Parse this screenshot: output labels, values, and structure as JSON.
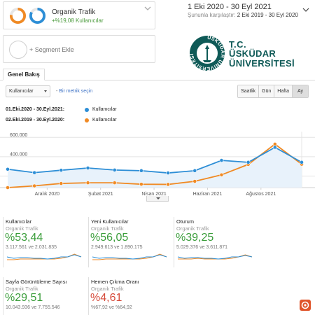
{
  "segments": {
    "primary": {
      "title": "Organik Trafik",
      "subtitle": "+%19,08 Kullanıcılar",
      "ring_colors": [
        "#f08a24",
        "#2d8ed6"
      ]
    },
    "add_label": "+ Segment Ekle"
  },
  "date_range": {
    "main": "1 Eki 2020 - 30 Eyl 2021",
    "compare_label": "Şununla karşılaştır:",
    "compare_range": "2 Eki 2019 - 30 Eyl 2020"
  },
  "logo": {
    "ring_text": "ÜSKÜDAR ÜNİVERSİTESİ",
    "line1": "T.C.",
    "line2": "ÜSKÜDAR",
    "line3": "ÜNİVERSİTESİ",
    "color": "#0f5a57"
  },
  "tabs": {
    "overview": "Genel Bakış"
  },
  "controls": {
    "metric_select": "Kullanıcılar",
    "vs": "-",
    "add_metric": "Bir metrik seçin",
    "periods": [
      "Saatlik",
      "Gün",
      "Hafta",
      "Ay"
    ],
    "active_period": "Ay"
  },
  "legend": [
    {
      "range": "01.Eki.2020 - 30.Eyl.2021:",
      "name": "Kullanıcılar",
      "color": "#2d8ed6"
    },
    {
      "range": "02.Eki.2019 - 30.Eyl.2020:",
      "name": "Kullanıcılar",
      "color": "#f08a24"
    }
  ],
  "chart_data": {
    "type": "line",
    "y_ticks": [
      "600.000",
      "400.000",
      "200.000"
    ],
    "ylim": [
      80000,
      660000
    ],
    "x_tick_labels": [
      "Aralık 2020",
      "Şubat 2021",
      "Nisan 2021",
      "Haziran 2021",
      "Ağustos 2021"
    ],
    "x_tick_positions": [
      2,
      4,
      6,
      8,
      10
    ],
    "series": [
      {
        "name": "Kullanıcılar",
        "color": "#2d8ed6",
        "fill": true,
        "values": [
          270000,
          235000,
          260000,
          283000,
          262000,
          255000,
          232000,
          255000,
          362000,
          342000,
          497000,
          342000
        ]
      },
      {
        "name": "Kullanıcılar",
        "color": "#f08a24",
        "fill": false,
        "values": [
          80000,
          98000,
          123000,
          130000,
          130000,
          115000,
          113000,
          145000,
          212000,
          320000,
          530000,
          322000
        ]
      }
    ]
  },
  "cards": [
    {
      "title": "Kullanıcılar",
      "subtitle": "Organik Trafik",
      "pct": "%53,44",
      "trend": "up",
      "values": "3.117.561 ve 2.031.835"
    },
    {
      "title": "Yeni Kullanıcılar",
      "subtitle": "Organik Trafik",
      "pct": "%56,05",
      "trend": "up",
      "values": "2.949.613 ve 1.890.175"
    },
    {
      "title": "Oturum",
      "subtitle": "Organik Trafik",
      "pct": "%39,25",
      "trend": "up",
      "values": "5.029.376 ve 3.611.871"
    },
    {
      "title": "Sayfa Görüntüleme Sayısı",
      "subtitle": "Organik Trafik",
      "pct": "%29,51",
      "trend": "up",
      "values": "10.043.936 ve 7.755.546"
    },
    {
      "title": "Hemen Çıkma Oranı",
      "subtitle": "Organik Trafik",
      "pct": "%4,61",
      "trend": "down",
      "values": "%67,92 ve %64,92"
    }
  ]
}
